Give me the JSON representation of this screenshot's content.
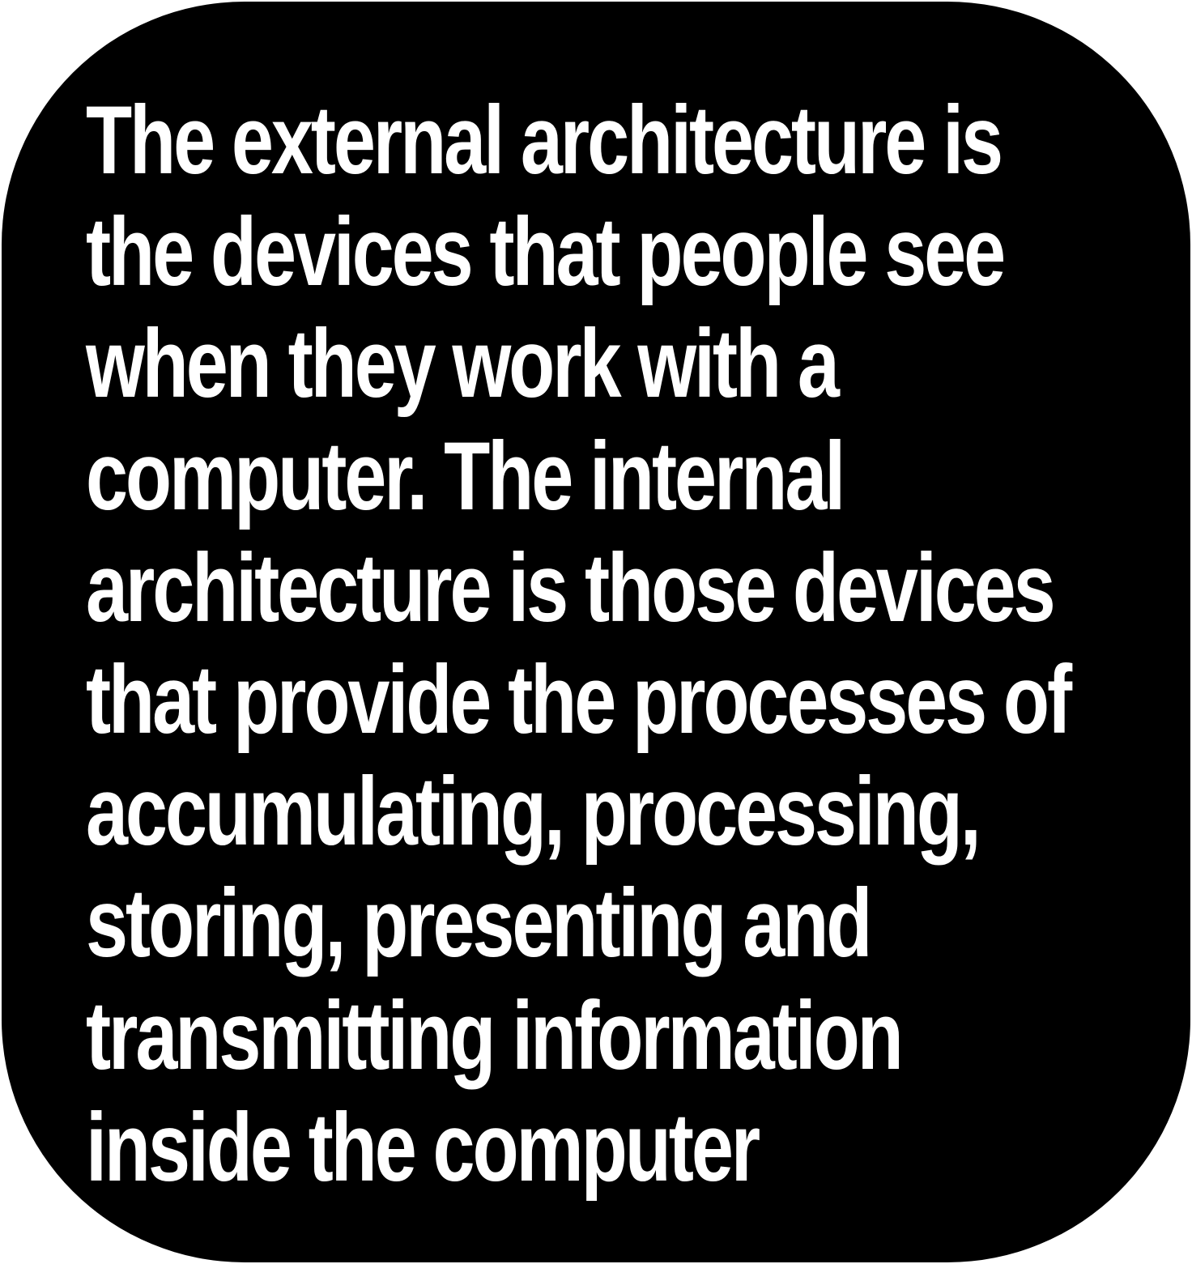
{
  "card": {
    "background": "#000000",
    "text_color": "#ffffff",
    "lines": [
      "The external architecture is",
      "the devices that people see",
      "when they work with a",
      "computer. The internal",
      "architecture is those devices",
      "that provide the processes of",
      "accumulating, processing,",
      "storing, presenting and",
      "transmitting information",
      "inside the computer"
    ]
  }
}
